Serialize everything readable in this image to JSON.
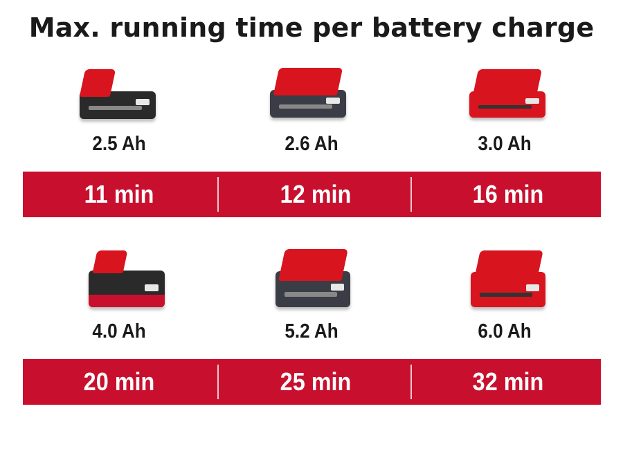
{
  "title": "Max. running time per battery charge",
  "colors": {
    "accent": "#c8102e",
    "text": "#1a1a1a",
    "bar_text": "#ffffff"
  },
  "rows": [
    {
      "batteries": [
        {
          "capacity": "2.5 Ah",
          "runtime": "11 min",
          "icon": "battery-pack-icon"
        },
        {
          "capacity": "2.6 Ah",
          "runtime": "12 min",
          "icon": "battery-pack-icon"
        },
        {
          "capacity": "3.0 Ah",
          "runtime": "16 min",
          "icon": "battery-pack-icon"
        }
      ]
    },
    {
      "batteries": [
        {
          "capacity": "4.0 Ah",
          "runtime": "20 min",
          "icon": "battery-pack-icon"
        },
        {
          "capacity": "5.2 Ah",
          "runtime": "25 min",
          "icon": "battery-pack-icon"
        },
        {
          "capacity": "6.0 Ah",
          "runtime": "32 min",
          "icon": "battery-pack-icon"
        }
      ]
    }
  ]
}
